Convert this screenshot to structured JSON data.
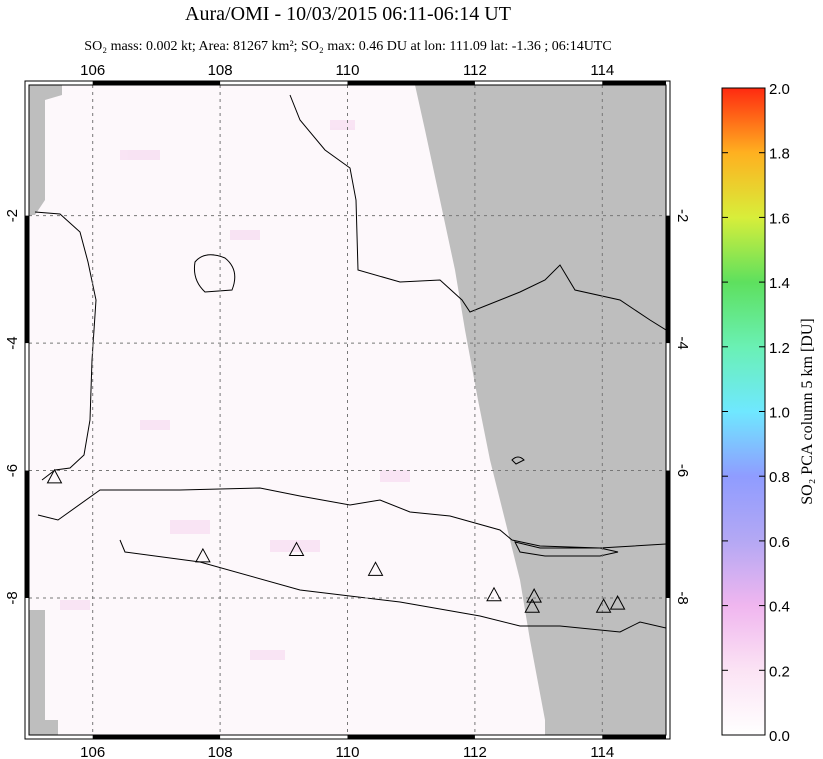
{
  "chart_data": {
    "type": "map",
    "title": "Aura/OMI - 10/03/2015 06:11-06:14 UT",
    "subtitle": "SO₂ mass: 0.002 kt; Area: 81267 km²; SO₂ max: 0.46 DU at lon: 111.09 lat: -1.36 ; 06:14UTC",
    "xlim": [
      105,
      115
    ],
    "xticks": [
      106,
      108,
      110,
      112,
      114
    ],
    "ylim": [
      -10.15,
      0.05
    ],
    "yticks": [
      -2,
      -4,
      -6,
      -8
    ],
    "grid": true,
    "colorbar": {
      "label": "SO₂ PCA column 5 km [DU]",
      "lim": [
        0,
        2
      ],
      "ticks": [
        {
          "value": 0,
          "label": "0.0"
        },
        0.2,
        0.4,
        0.6,
        0.8,
        {
          "value": 1,
          "label": "1.0"
        },
        1.2,
        1.4,
        1.6,
        1.8,
        {
          "value": 2,
          "label": "2.0"
        }
      ]
    },
    "volcanoes": {
      "lon": [
        105.4,
        107.73,
        109.2,
        110.44,
        112.3,
        112.93,
        112.9,
        114.02,
        114.24
      ],
      "lat": [
        -6.1,
        -7.34,
        -7.24,
        -7.55,
        -7.95,
        -7.97,
        -8.13,
        -8.13,
        -8.08
      ]
    }
  }
}
